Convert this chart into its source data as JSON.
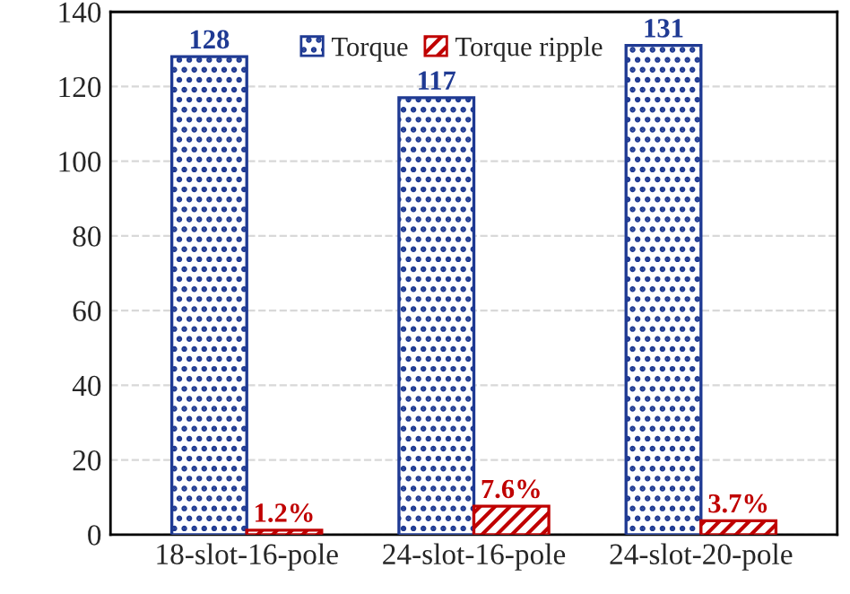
{
  "chart_data": {
    "type": "bar",
    "categories": [
      "18-slot-16-pole",
      "24-slot-16-pole",
      "24-slot-20-pole"
    ],
    "series": [
      {
        "name": "Torque",
        "color": "#1f3a93",
        "values": [
          128,
          117,
          131
        ],
        "value_labels": [
          "128",
          "117",
          "131"
        ]
      },
      {
        "name": "Torque ripple",
        "color": "#c00000",
        "values": [
          1.2,
          7.6,
          3.7
        ],
        "value_labels": [
          "1.2%",
          "7.6%",
          "3.7%"
        ]
      }
    ],
    "ylim": [
      0,
      140
    ],
    "yticks": [
      0,
      20,
      40,
      60,
      80,
      100,
      120,
      140
    ],
    "grid": "y",
    "legend": "top"
  }
}
